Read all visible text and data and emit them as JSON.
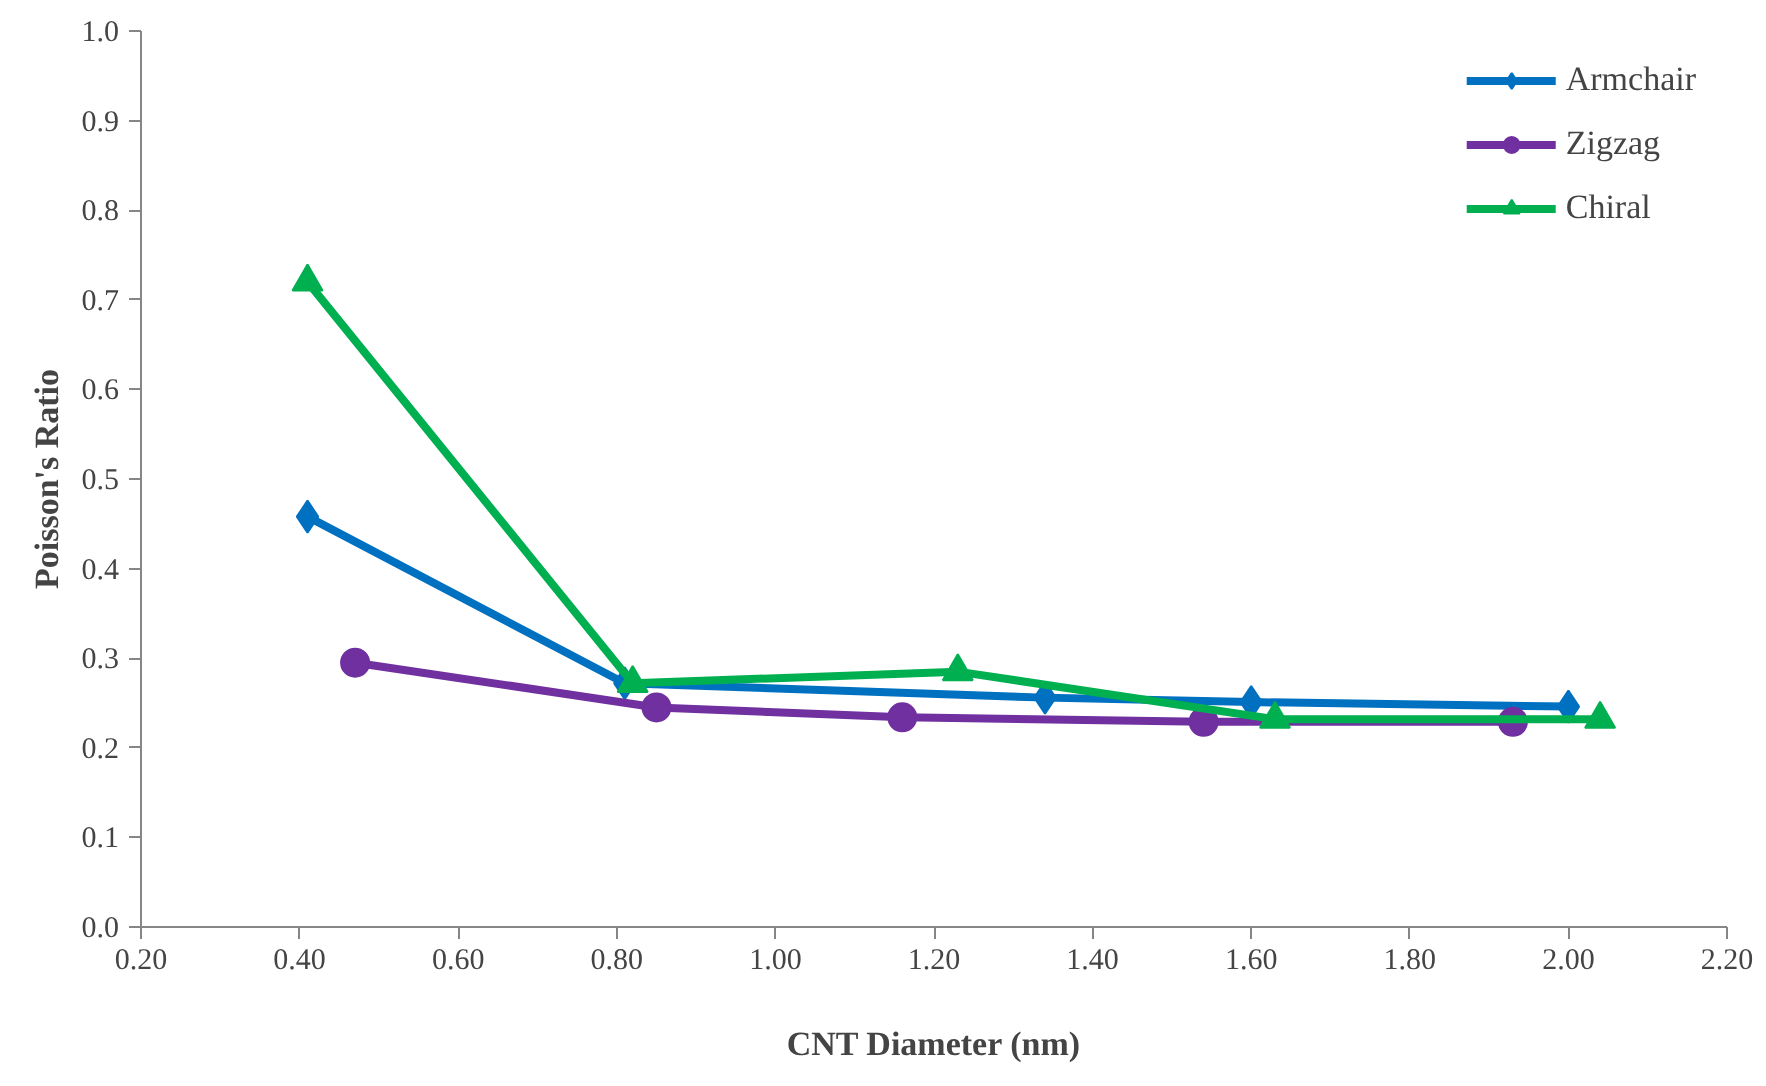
{
  "chart_data": {
    "type": "line",
    "xlabel": "CNT Diameter (nm)",
    "ylabel": "Poisson's Ratio",
    "xlim": [
      0.2,
      2.2
    ],
    "xticks": [
      {
        "value": 0.2,
        "label": "0.20"
      },
      {
        "value": 0.4,
        "label": "0.40"
      },
      {
        "value": 0.6,
        "label": "0.60"
      },
      {
        "value": 0.8,
        "label": "0.80"
      },
      {
        "value": 1.0,
        "label": "1.00"
      },
      {
        "value": 1.2,
        "label": "1.20"
      },
      {
        "value": 1.4,
        "label": "1.40"
      },
      {
        "value": 1.6,
        "label": "1.60"
      },
      {
        "value": 1.8,
        "label": "1.80"
      },
      {
        "value": 2.0,
        "label": "2.00"
      },
      {
        "value": 2.2,
        "label": "2.20"
      }
    ],
    "ylim": [
      0,
      1
    ],
    "yticks": [
      {
        "value": 0,
        "label": "0.0"
      },
      {
        "value": 0.1,
        "label": "0.1"
      },
      {
        "value": 0.2,
        "label": "0.2"
      },
      {
        "value": 0.3,
        "label": "0.3"
      },
      {
        "value": 0.4,
        "label": "0.4"
      },
      {
        "value": 0.5,
        "label": "0.5"
      },
      {
        "value": 0.6,
        "label": "0.6"
      },
      {
        "value": 0.7,
        "label": "0.7"
      },
      {
        "value": 0.8,
        "label": "0.8"
      },
      {
        "value": 0.9,
        "label": "0.9"
      },
      {
        "value": 1.0,
        "label": "1.0"
      }
    ],
    "grid": false,
    "legend": "top right",
    "line_style": "solid",
    "series": [
      {
        "name": "Armchair",
        "color": "#0070c0",
        "marker": "diamond",
        "x": [
          0.41,
          0.81,
          1.34,
          1.6,
          2.0
        ],
        "values": [
          0.458,
          0.272,
          0.256,
          0.251,
          0.246
        ]
      },
      {
        "name": "Zigzag",
        "color": "#7030a0",
        "marker": "circle",
        "x": [
          0.47,
          0.85,
          1.16,
          1.54,
          1.93
        ],
        "values": [
          0.295,
          0.245,
          0.234,
          0.229,
          0.229
        ]
      },
      {
        "name": "Chiral",
        "color": "#00b050",
        "marker": "triangle",
        "x": [
          0.41,
          0.82,
          1.23,
          1.63,
          2.04
        ],
        "values": [
          0.72,
          0.272,
          0.285,
          0.232,
          0.232
        ]
      }
    ]
  }
}
